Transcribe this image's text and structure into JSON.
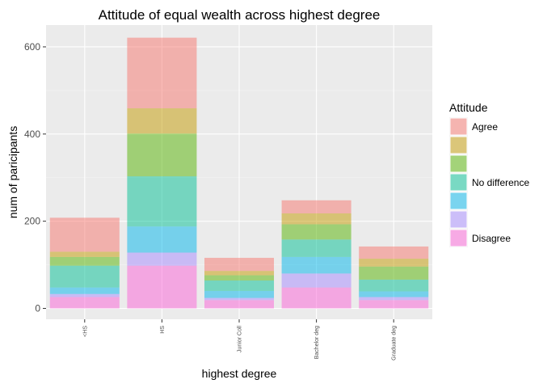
{
  "chart_data": {
    "type": "bar",
    "stacked": true,
    "title": "Attitude of equal wealth across highest degree",
    "xlabel": "highest degree",
    "ylabel": "num of paricipants",
    "categories": [
      "<HS",
      "HS",
      "Junior Coll",
      "Bachelor deg",
      "Graduate deg"
    ],
    "yticks": [
      0,
      200,
      400,
      600
    ],
    "ylim": [
      -25,
      650
    ],
    "grid": true,
    "legend": {
      "title": "Attitude",
      "position": "right",
      "labels": [
        "Agree",
        "",
        "",
        "No difference",
        "",
        "",
        "Disagree"
      ]
    },
    "series": [
      {
        "level": 7,
        "color": "#F8766D",
        "values": [
          78,
          162,
          30,
          30,
          28
        ]
      },
      {
        "level": 6,
        "color": "#C49A00",
        "values": [
          12,
          58,
          10,
          25,
          18
        ]
      },
      {
        "level": 5,
        "color": "#53B400",
        "values": [
          20,
          98,
          12,
          35,
          30
        ]
      },
      {
        "level": 4,
        "color": "#00C094",
        "values": [
          50,
          115,
          24,
          40,
          27
        ]
      },
      {
        "level": 3,
        "color": "#00B6EB",
        "values": [
          15,
          60,
          16,
          38,
          13
        ]
      },
      {
        "level": 2,
        "color": "#A58AFF",
        "values": [
          7,
          30,
          5,
          32,
          7
        ]
      },
      {
        "level": 1,
        "color": "#FB61D7",
        "values": [
          26,
          98,
          19,
          48,
          19
        ]
      }
    ]
  }
}
